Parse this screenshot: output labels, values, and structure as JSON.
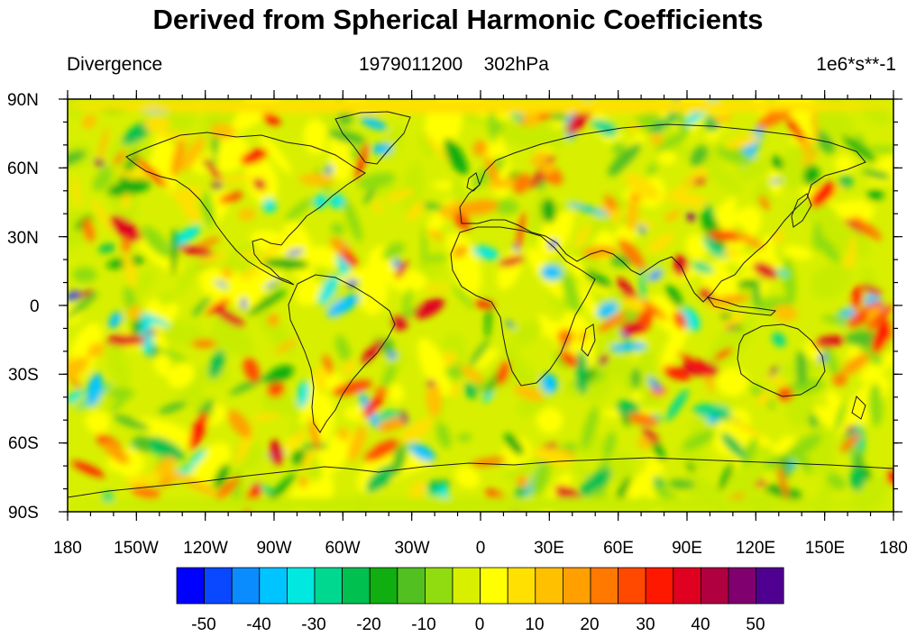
{
  "title": "Derived from Spherical Harmonic Coefficients",
  "left_string": "Divergence",
  "center_string": "1979011200    302hPa",
  "right_string": "1e6*s**-1",
  "lat_labels": [
    "90N",
    "60N",
    "30N",
    "0",
    "30S",
    "60S",
    "90S"
  ],
  "lon_labels": [
    "180",
    "150W",
    "120W",
    "90W",
    "60W",
    "30W",
    "0",
    "30E",
    "60E",
    "90E",
    "120E",
    "150E",
    "180"
  ],
  "colorbar": {
    "labels": [
      "-50",
      "-40",
      "-30",
      "-20",
      "-10",
      "0",
      "10",
      "20",
      "30",
      "40",
      "50"
    ],
    "colors": [
      "#0000ff",
      "#0a48ff",
      "#0a8cff",
      "#00c4ff",
      "#00e8e0",
      "#00d890",
      "#00c050",
      "#10ae10",
      "#52c020",
      "#90dc10",
      "#d8f000",
      "#ffff00",
      "#ffe000",
      "#ffc000",
      "#ffa000",
      "#ff7800",
      "#ff4800",
      "#ff1800",
      "#e00020",
      "#b00040",
      "#800070",
      "#500090"
    ]
  }
}
